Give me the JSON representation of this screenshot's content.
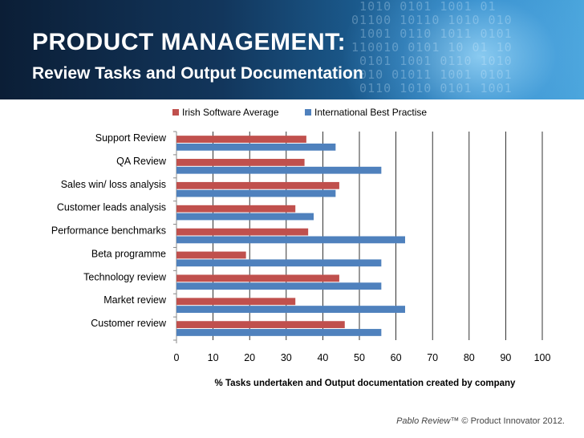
{
  "slide": {
    "title": "PRODUCT MANAGEMENT:",
    "subtitle": "Review Tasks and Output Documentation",
    "footer_brand": "Pablo Review™",
    "footer_copyright": " © Product Innovator 2012."
  },
  "colors": {
    "series_irish": "#c0504d",
    "series_international": "#4f81bd",
    "gridline": "#000000"
  },
  "chart_data": {
    "type": "bar",
    "orientation": "horizontal",
    "title": "",
    "xlabel": "% Tasks undertaken and Output documentation created by company",
    "ylabel": "",
    "xlim": [
      0,
      100
    ],
    "xticks": [
      0,
      10,
      20,
      30,
      40,
      50,
      60,
      70,
      80,
      90,
      100
    ],
    "grid": true,
    "legend_position": "top",
    "categories": [
      "Support Review",
      "QA Review",
      "Sales win/ loss analysis",
      "Customer leads analysis",
      "Performance benchmarks",
      "Beta programme",
      "Technology review",
      "Market review",
      "Customer review"
    ],
    "series": [
      {
        "name": "Irish Software Average",
        "color": "#c0504d",
        "values": [
          35.5,
          35,
          44.5,
          32.5,
          36,
          19,
          44.5,
          32.5,
          46
        ]
      },
      {
        "name": "International Best Practise",
        "color": "#4f81bd",
        "values": [
          43.5,
          56,
          43.5,
          37.5,
          62.5,
          56,
          56,
          62.5,
          56
        ]
      }
    ]
  }
}
